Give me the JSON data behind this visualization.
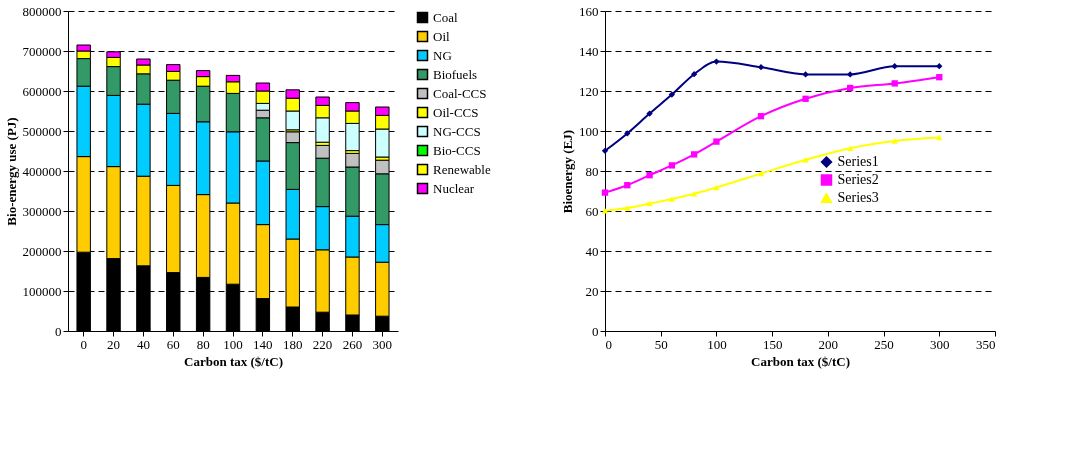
{
  "chart_data": [
    {
      "type": "bar",
      "stacked": true,
      "xlabel": "Carbon tax ($/tC)",
      "ylabel": "Bio-energy use (PJ)",
      "categories": [
        "0",
        "20",
        "40",
        "60",
        "80",
        "100",
        "140",
        "180",
        "220",
        "260",
        "300"
      ],
      "ylim": [
        0,
        800000
      ],
      "yticks": [
        0,
        100000,
        200000,
        300000,
        400000,
        500000,
        600000,
        700000,
        800000
      ],
      "grid": "y",
      "legend": "right",
      "series": [
        {
          "name": "Coal",
          "color": "#000000",
          "values": [
            197000,
            181000,
            163000,
            146000,
            134000,
            117000,
            81000,
            60000,
            47000,
            40000,
            37000
          ]
        },
        {
          "name": "Oil",
          "color": "#ffcc00",
          "values": [
            239000,
            230000,
            224000,
            218000,
            207000,
            203000,
            185000,
            170000,
            156000,
            145000,
            135000
          ]
        },
        {
          "name": "NG",
          "color": "#00ccff",
          "values": [
            176000,
            178000,
            180000,
            180000,
            182000,
            178000,
            159000,
            124000,
            108000,
            102000,
            94000
          ]
        },
        {
          "name": "Biofuels",
          "color": "#339966",
          "values": [
            69000,
            72000,
            76000,
            83000,
            89000,
            96000,
            108000,
            117000,
            121000,
            123000,
            127000
          ]
        },
        {
          "name": "Coal-CCS",
          "color": "#c0c0c0",
          "values": [
            0,
            0,
            0,
            0,
            0,
            0,
            19000,
            27000,
            32000,
            34000,
            34000
          ]
        },
        {
          "name": "Oil-CCS",
          "color": "#ffff00",
          "values": [
            0,
            0,
            0,
            0,
            0,
            0,
            0,
            5000,
            8000,
            7000,
            8000
          ]
        },
        {
          "name": "NG-CCS",
          "color": "#ccffff",
          "values": [
            0,
            0,
            0,
            0,
            0,
            0,
            17000,
            47000,
            61000,
            68000,
            70000
          ]
        },
        {
          "name": "Bio-CCS",
          "color": "#00ff00",
          "values": [
            0,
            0,
            0,
            0,
            0,
            0,
            0,
            0,
            0,
            0,
            0
          ]
        },
        {
          "name": "Renewable",
          "color": "#ffff00",
          "values": [
            19000,
            23000,
            22000,
            22000,
            24000,
            29000,
            31000,
            32000,
            31000,
            31000,
            34000
          ]
        },
        {
          "name": "Nuclear",
          "color": "#ff00ff",
          "values": [
            15000,
            14000,
            15000,
            17000,
            15000,
            16000,
            20000,
            21000,
            21000,
            21000,
            21000
          ]
        }
      ]
    },
    {
      "type": "line",
      "xlabel": "Carbon tax ($/tC)",
      "ylabel": "Bioenergy (EJ)",
      "x": [
        0,
        20,
        40,
        60,
        80,
        100,
        140,
        180,
        220,
        260,
        300
      ],
      "xlim": [
        0,
        350
      ],
      "xticks": [
        0,
        50,
        100,
        150,
        200,
        250,
        300,
        350
      ],
      "ylim": [
        0,
        160
      ],
      "yticks": [
        0,
        20,
        40,
        60,
        80,
        100,
        120,
        140,
        160
      ],
      "grid": "y",
      "legend": "center right",
      "series": [
        {
          "name": "Series1",
          "color": "#000080",
          "marker": "diamond",
          "values": [
            90.1,
            98.8,
            108.7,
            118.2,
            128.4,
            134.7,
            131.9,
            128.3,
            128.3,
            132.4,
            132.4
          ]
        },
        {
          "name": "Series2",
          "color": "#ff00ff",
          "marker": "square",
          "values": [
            69.2,
            72.9,
            77.9,
            82.8,
            88.3,
            94.7,
            107.4,
            116.1,
            121.5,
            123.8,
            126.9
          ]
        },
        {
          "name": "Series3",
          "color": "#ffff00",
          "marker": "triangle",
          "values": [
            60.1,
            61.5,
            63.7,
            66.0,
            68.6,
            71.8,
            78.7,
            85.6,
            91.4,
            95.0,
            96.7
          ]
        }
      ]
    }
  ]
}
